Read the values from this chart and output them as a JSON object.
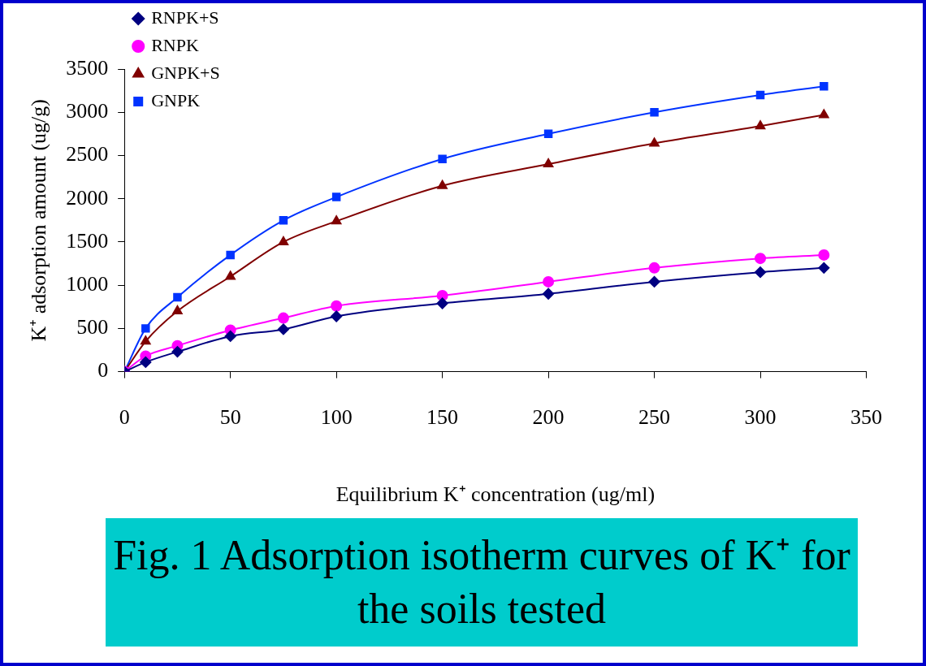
{
  "chart_data": {
    "type": "line",
    "title": "Fig. 1  Adsorption isotherm curves of K⁺ for the soils tested",
    "xlabel": "Equilibrium K⁺ concentration (ug/ml)",
    "ylabel": "K⁺ adsorption amount (ug/g)",
    "x": [
      0,
      10,
      25,
      50,
      75,
      100,
      150,
      200,
      250,
      300,
      330
    ],
    "series": [
      {
        "name": "RNPK+S",
        "color": "#000080",
        "marker": "diamond",
        "values": [
          0,
          110,
          230,
          410,
          490,
          640,
          790,
          900,
          1040,
          1150,
          1200
        ]
      },
      {
        "name": "RNPK",
        "color": "#ff00ff",
        "marker": "circle",
        "values": [
          0,
          180,
          300,
          480,
          620,
          760,
          880,
          1040,
          1200,
          1310,
          1350
        ]
      },
      {
        "name": "GNPK+S",
        "color": "#800000",
        "marker": "triangle",
        "values": [
          0,
          350,
          700,
          1100,
          1500,
          1740,
          2150,
          2400,
          2640,
          2840,
          2970
        ]
      },
      {
        "name": "GNPK",
        "color": "#0033ff",
        "marker": "square",
        "values": [
          0,
          500,
          860,
          1350,
          1750,
          2020,
          2460,
          2750,
          3000,
          3200,
          3300
        ]
      }
    ],
    "xlim": [
      0,
      350
    ],
    "xticks": [
      0,
      50,
      100,
      150,
      200,
      250,
      300,
      350
    ],
    "ylim": [
      0,
      3500
    ],
    "yticks": [
      0,
      500,
      1000,
      1500,
      2000,
      2500,
      3000,
      3500
    ],
    "grid": false,
    "legend": "top left"
  }
}
